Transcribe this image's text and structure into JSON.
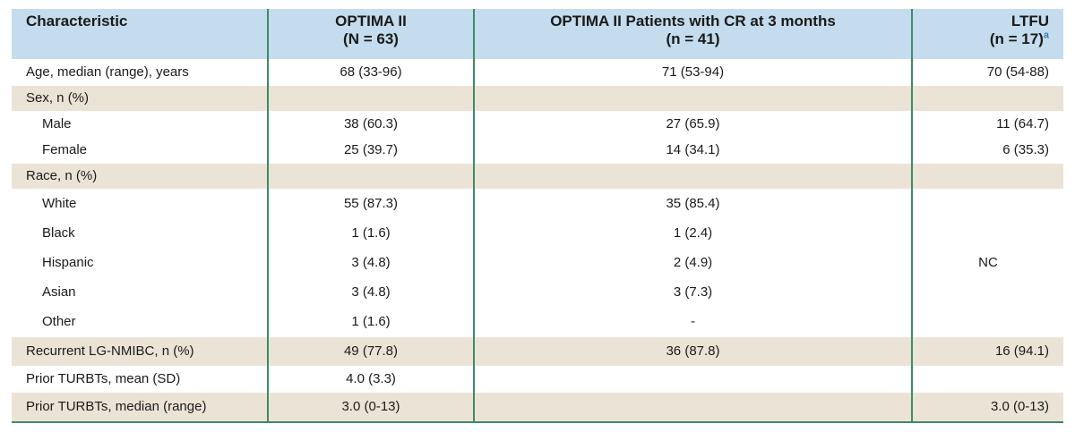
{
  "header": {
    "col1": "Characteristic",
    "col2_title": "OPTIMA II",
    "col2_sub": "(N = 63)",
    "col3_title": "OPTIMA II Patients with CR at 3 months",
    "col3_sub": "(n = 41)",
    "col4_title": "LTFU",
    "col4_sub": "(n = 17)",
    "col4_footnote": "a"
  },
  "rows": [
    {
      "label": "Age, median (range), years",
      "optima": "68 (33-96)",
      "cr": "71 (53-94)",
      "ltfu": "70 (54-88)"
    },
    {
      "label": "Sex, n (%)",
      "optima": "",
      "cr": "",
      "ltfu": ""
    },
    {
      "label": "Male",
      "optima": "38 (60.3)",
      "cr": "27 (65.9)",
      "ltfu": "11 (64.7)"
    },
    {
      "label": "Female",
      "optima": "25 (39.7)",
      "cr": "14 (34.1)",
      "ltfu": "6 (35.3)"
    },
    {
      "label": "Race, n (%)",
      "optima": "",
      "cr": "",
      "ltfu": ""
    },
    {
      "label": "White",
      "optima": "55 (87.3)",
      "cr": "35 (85.4)"
    },
    {
      "label": "Black",
      "optima": "1 (1.6)",
      "cr": "1 (2.4)"
    },
    {
      "label": "Hispanic",
      "optima": "3 (4.8)",
      "cr": "2 (4.9)"
    },
    {
      "label": "Asian",
      "optima": "3 (4.8)",
      "cr": "3 (7.3)"
    },
    {
      "label": "Other",
      "optima": "1 (1.6)",
      "cr": "-"
    },
    {
      "label": "Recurrent LG-NMIBC, n (%)",
      "optima": "49 (77.8)",
      "cr": "36 (87.8)",
      "ltfu": "16 (94.1)"
    },
    {
      "label": "Prior TURBTs, mean (SD)",
      "optima": "4.0 (3.3)",
      "cr": "",
      "ltfu": ""
    },
    {
      "label": "Prior TURBTs, median (range)",
      "optima": "3.0 (0-13)",
      "cr": "",
      "ltfu": "3.0 (0-13)"
    }
  ],
  "race_ltfu": "NC"
}
